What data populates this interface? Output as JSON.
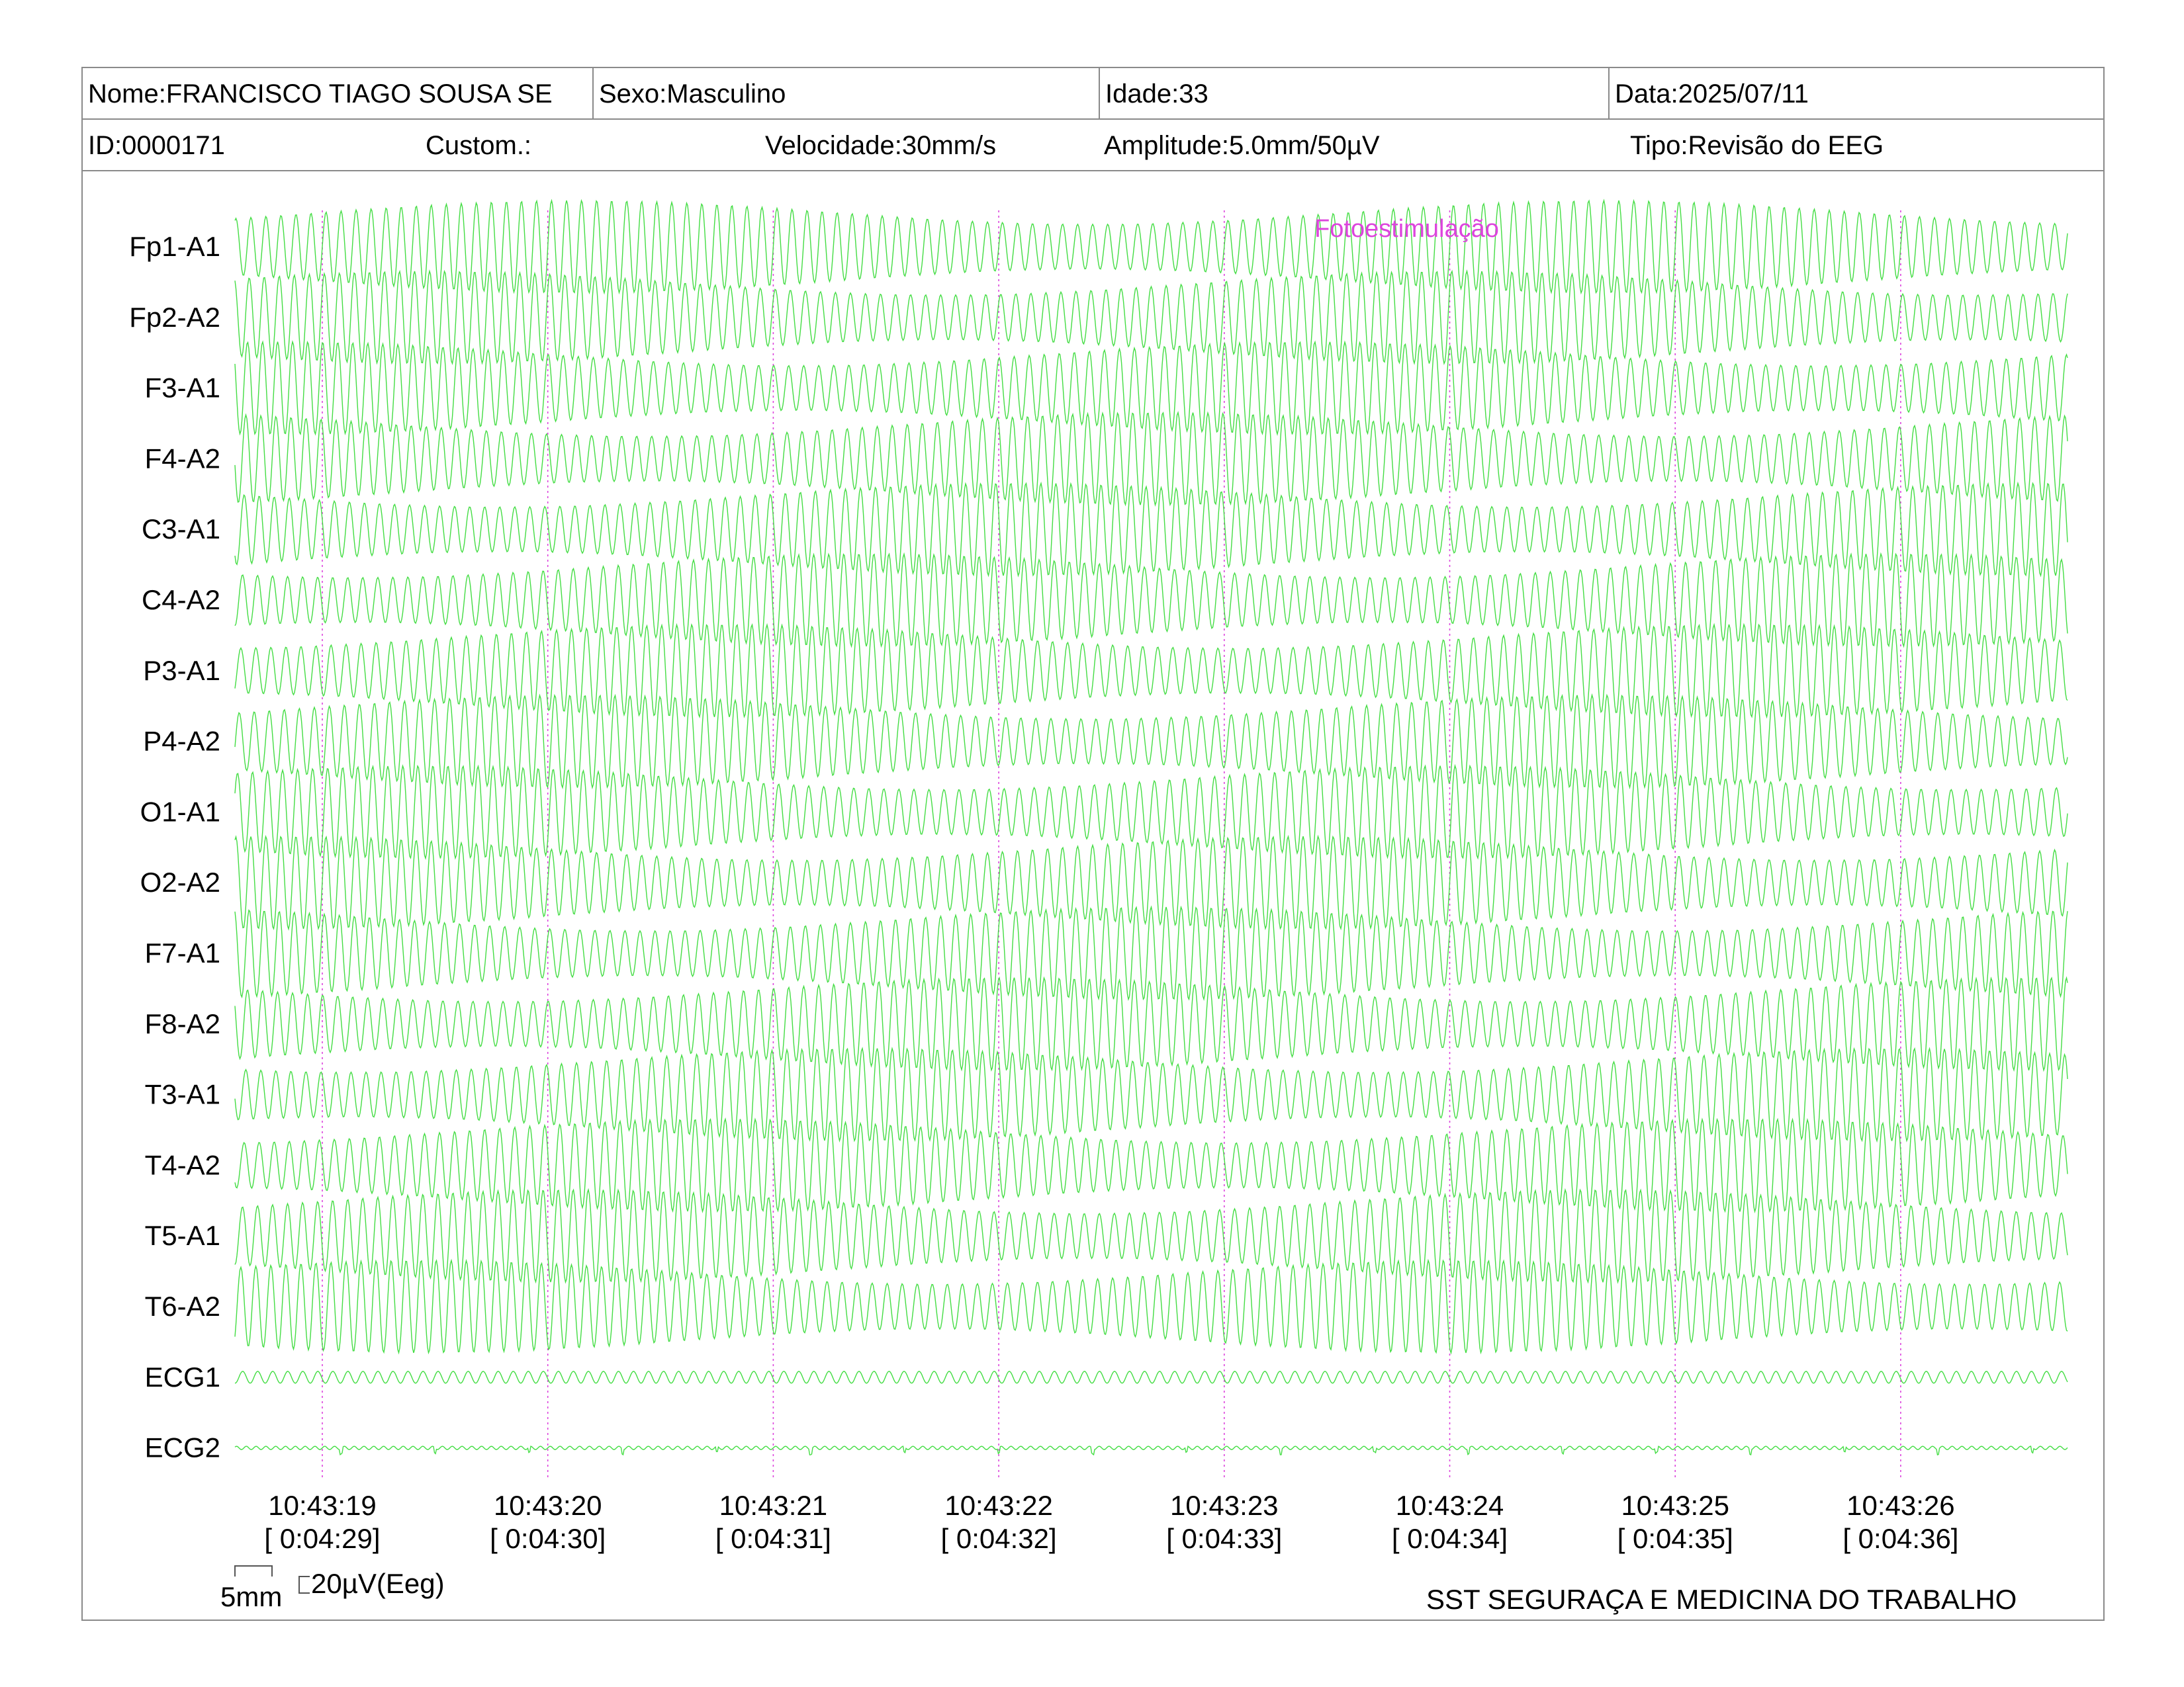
{
  "header": {
    "nome": "Nome:FRANCISCO TIAGO SOUSA SE",
    "sexo": "Sexo:Masculino",
    "idade": "Idade:33",
    "data": "Data:2025/07/11",
    "id": "ID:0000171",
    "custom": "Custom.:",
    "velocidade": "Velocidade:30mm/s",
    "amplitude": "Amplitude:5.0mm/50µV",
    "tipo": "Tipo:Revisão do EEG"
  },
  "chart_data": {
    "type": "line",
    "channels": [
      "Fp1-A1",
      "Fp2-A2",
      "F3-A1",
      "F4-A2",
      "C3-A1",
      "C4-A2",
      "P3-A1",
      "P4-A2",
      "O1-A1",
      "O2-A2",
      "F7-A1",
      "F8-A2",
      "T3-A1",
      "T4-A2",
      "T5-A1",
      "T6-A2",
      "ECG1",
      "ECG2"
    ],
    "time_ticks": [
      {
        "clock": "10:43:19",
        "elapsed": "[ 0:04:29]"
      },
      {
        "clock": "10:43:20",
        "elapsed": "[ 0:04:30]"
      },
      {
        "clock": "10:43:21",
        "elapsed": "[ 0:04:31]"
      },
      {
        "clock": "10:43:22",
        "elapsed": "[ 0:04:32]"
      },
      {
        "clock": "10:43:23",
        "elapsed": "[ 0:04:33]"
      },
      {
        "clock": "10:43:24",
        "elapsed": "[ 0:04:34]"
      },
      {
        "clock": "10:43:25",
        "elapsed": "[ 0:04:35]"
      },
      {
        "clock": "10:43:26",
        "elapsed": "[ 0:04:36]"
      }
    ],
    "seconds_shown": 8.5,
    "eeg_dominant_frequency_hz": 15,
    "annotation": "Fotoestimulação",
    "annotation_time_s": 4.4,
    "trace_color": "#44dd44",
    "marker_color": "#dd44dd"
  },
  "scale": {
    "time_label": "5mm",
    "amplitude_label": "20µV(Eeg)"
  },
  "footer": {
    "company": "SST SEGURAÇA E MEDICINA DO TRABALHO"
  }
}
